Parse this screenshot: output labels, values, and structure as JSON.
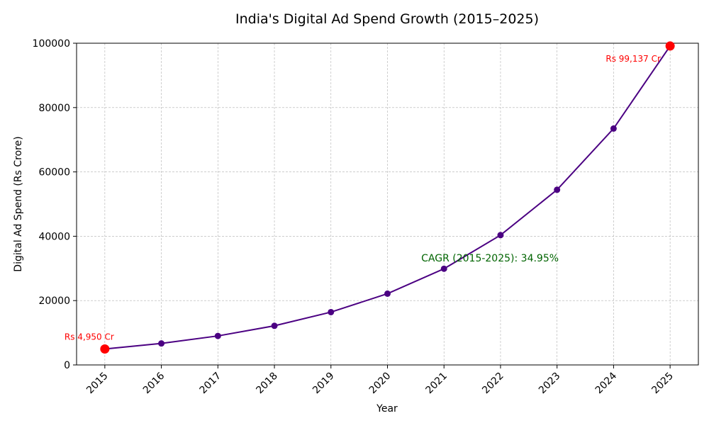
{
  "chart_data": {
    "type": "line",
    "title": "India's Digital Ad Spend Growth (2015–2025)",
    "xlabel": "Year",
    "ylabel": "Digital Ad Spend (Rs Crore)",
    "x": [
      2015,
      2016,
      2017,
      2018,
      2019,
      2020,
      2021,
      2022,
      2023,
      2024,
      2025
    ],
    "series": [
      {
        "name": "Digital Ad Spend",
        "color": "#4b0082",
        "values": [
          4950,
          6680,
          9015,
          12166,
          16418,
          22156,
          29900,
          40350,
          54452,
          73483,
          99137
        ]
      }
    ],
    "ylim": [
      0,
      100000
    ],
    "yticks": [
      0,
      20000,
      40000,
      60000,
      80000,
      100000
    ],
    "ytick_labels": [
      "0",
      "20000",
      "40000",
      "60000",
      "80000",
      "100000"
    ],
    "xtick_labels": [
      "2015",
      "2016",
      "2017",
      "2018",
      "2019",
      "2020",
      "2021",
      "2022",
      "2023",
      "2024",
      "2025"
    ],
    "grid": true,
    "highlight_color": "#ff0000",
    "annotations": [
      {
        "text": "Rs 4,950 Cr",
        "x": 2015,
        "y": 4950,
        "color": "#ff0000"
      },
      {
        "text": "Rs 99,137 Cr",
        "x": 2025,
        "y": 99137,
        "color": "#ff0000"
      },
      {
        "text": "CAGR (2015-2025): 34.95%",
        "x": 2021.5,
        "y": 33000,
        "color": "#006400"
      }
    ]
  }
}
